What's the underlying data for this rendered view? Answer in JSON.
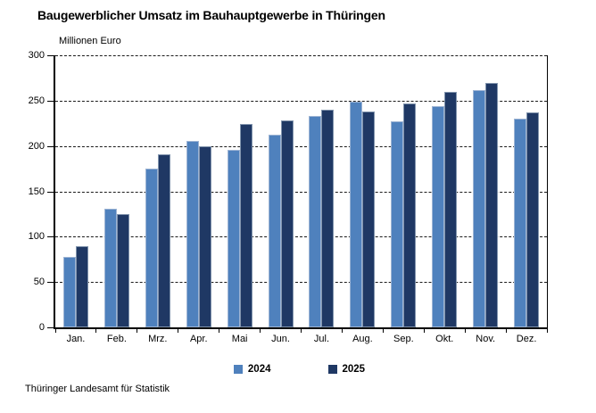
{
  "header": {
    "title": "Baugewerblicher Umsatz im Bauhauptgewerbe in Thüringen"
  },
  "footer": {
    "source": "Thüringer Landesamt für Statistik"
  },
  "colors": {
    "series_2024": "#4F81BD",
    "series_2025": "#1F3864",
    "gridline": "#1a1a1a",
    "axis": "#000000"
  },
  "chart_data": {
    "type": "bar",
    "title": "Baugewerblicher Umsatz im Bauhauptgewerbe in Thüringen",
    "xlabel": "",
    "ylabel": "Millionen Euro",
    "categories": [
      "Jan.",
      "Feb.",
      "Mrz.",
      "Apr.",
      "Mai",
      "Jun.",
      "Jul.",
      "Aug.",
      "Sep.",
      "Okt.",
      "Nov.",
      "Dez."
    ],
    "series": [
      {
        "name": "2024",
        "color": "#4F81BD",
        "values": [
          78,
          131,
          175,
          206,
          196,
          212,
          233,
          249,
          227,
          244,
          262,
          230
        ]
      },
      {
        "name": "2025",
        "color": "#1F3864",
        "values": [
          90,
          125,
          191,
          200,
          224,
          228,
          240,
          238,
          247,
          260,
          270,
          237
        ]
      }
    ],
    "ylim": [
      0,
      300
    ],
    "yticks": [
      0,
      50,
      100,
      150,
      200,
      250,
      300
    ],
    "grid": "horizontal dashed",
    "legend_position": "bottom"
  }
}
